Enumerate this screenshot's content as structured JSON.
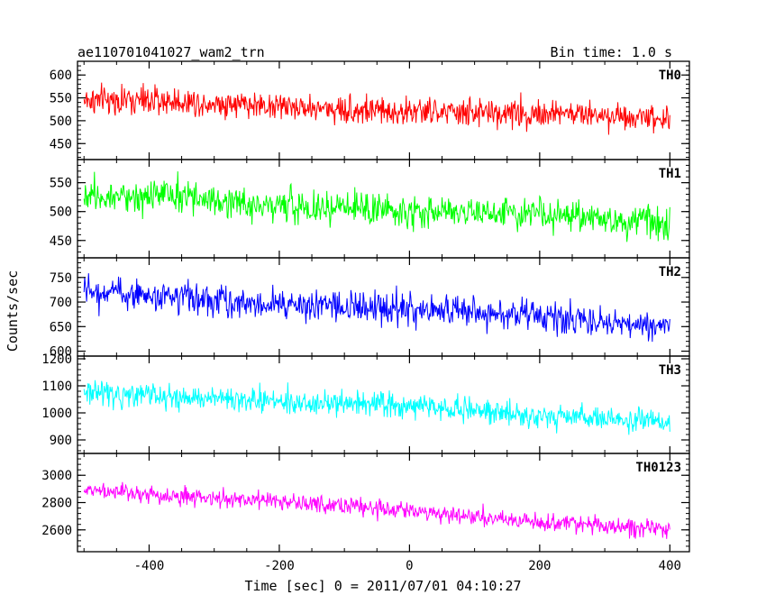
{
  "header": {
    "title": "ae110701041027_wam2_trn",
    "bin_time": "Bin time: 1.0 s"
  },
  "chart_data": {
    "type": "line",
    "xlabel": "Time [sec] 0 = 2011/07/01 04:10:27",
    "ylabel": "Counts/sec",
    "xlim": [
      -510,
      430
    ],
    "x_ticks": [
      -400,
      -200,
      0,
      200,
      400
    ],
    "x_range": [
      -500,
      400
    ],
    "x_step": 1,
    "panels": [
      {
        "name": "TH0",
        "color": "#ff0000",
        "ylim": [
          415,
          630
        ],
        "y_ticks": [
          450,
          500,
          550,
          600
        ],
        "trend_start": 545,
        "trend_end": 505,
        "noise": 28
      },
      {
        "name": "TH1",
        "color": "#00ff00",
        "ylim": [
          420,
          590
        ],
        "y_ticks": [
          450,
          500,
          550
        ],
        "trend_start": 530,
        "trend_end": 480,
        "noise": 26
      },
      {
        "name": "TH2",
        "color": "#0000ff",
        "ylim": [
          590,
          790
        ],
        "y_ticks": [
          600,
          650,
          700,
          750
        ],
        "trend_start": 720,
        "trend_end": 655,
        "noise": 28
      },
      {
        "name": "TH3",
        "color": "#00ffff",
        "ylim": [
          850,
          1210
        ],
        "y_ticks": [
          900,
          1000,
          1100,
          1200
        ],
        "trend_start": 1080,
        "trend_end": 970,
        "noise": 40
      },
      {
        "name": "TH0123",
        "color": "#ff00ff",
        "ylim": [
          2440,
          3160
        ],
        "y_ticks": [
          2600,
          2800,
          3000
        ],
        "trend_start": 2900,
        "trend_end": 2600,
        "noise": 60
      }
    ]
  }
}
